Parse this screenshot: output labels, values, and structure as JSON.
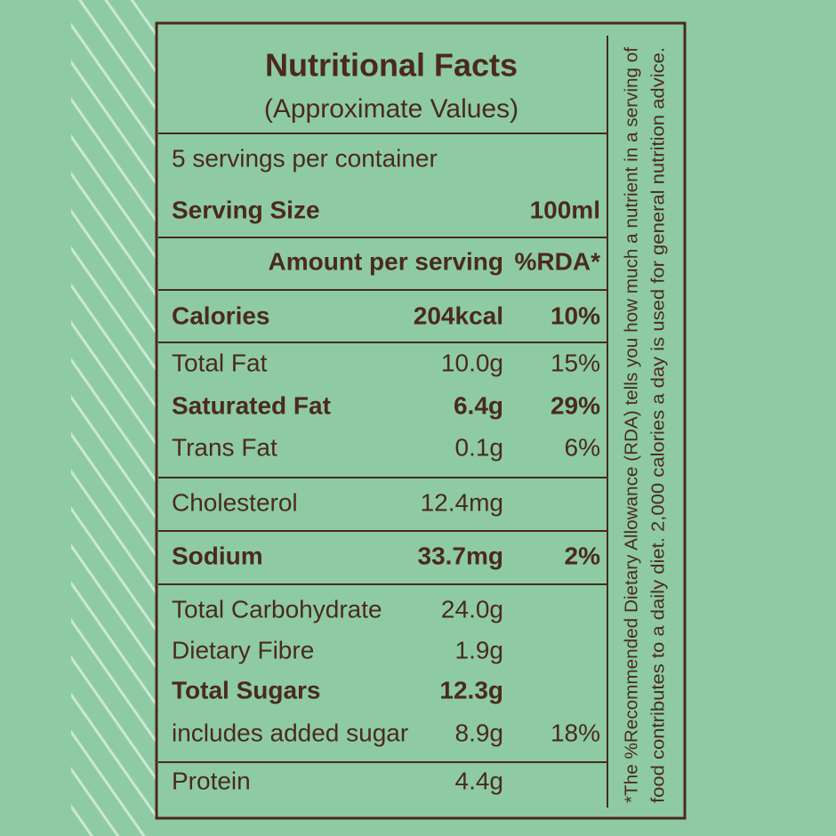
{
  "header": {
    "title": "Nutritional Facts",
    "subtitle": "(Approximate Values)"
  },
  "servings": "5 servings per container",
  "serving_size": {
    "label": "Serving Size",
    "value": "100ml"
  },
  "amount_header": {
    "label": "Amount per serving",
    "rda": "%RDA*"
  },
  "rows": [
    {
      "name": "Calories",
      "amount": "204kcal",
      "rda": "10%",
      "bold": true
    },
    {
      "name": "Total Fat",
      "amount": "10.0g",
      "rda": "15%",
      "bold": false
    },
    {
      "name": "Saturated Fat",
      "amount": "6.4g",
      "rda": "29%",
      "bold": true
    },
    {
      "name": "Trans Fat",
      "amount": "0.1g",
      "rda": "6%",
      "bold": false
    },
    {
      "name": "Cholesterol",
      "amount": "12.4mg",
      "rda": null,
      "bold": false
    },
    {
      "name": "Sodium",
      "amount": "33.7mg",
      "rda": "2%",
      "bold": true
    },
    {
      "name": "Total Carbohydrate",
      "amount": "24.0g",
      "rda": null,
      "bold": false
    },
    {
      "name": "Dietary Fibre",
      "amount": "1.9g",
      "rda": null,
      "bold": false
    },
    {
      "name": "Total Sugars",
      "amount": "12.3g",
      "rda": null,
      "bold": true
    },
    {
      "name": "includes added sugar",
      "amount": "8.9g",
      "rda": "18%",
      "bold": false
    },
    {
      "name": "Protein",
      "amount": "4.4g",
      "rda": null,
      "bold": false
    }
  ],
  "footnote": [
    "*The %Recommended Dietary Allowance (RDA) tells you how much a nutrient in a serving of",
    "food contributes to a daily diet. 2,000 calories a day is used for general nutrition advice."
  ]
}
